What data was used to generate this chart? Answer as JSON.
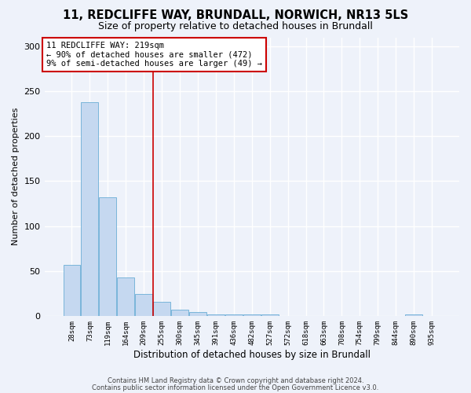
{
  "title1": "11, REDCLIFFE WAY, BRUNDALL, NORWICH, NR13 5LS",
  "title2": "Size of property relative to detached houses in Brundall",
  "bar_labels": [
    "28sqm",
    "73sqm",
    "119sqm",
    "164sqm",
    "209sqm",
    "255sqm",
    "300sqm",
    "345sqm",
    "391sqm",
    "436sqm",
    "482sqm",
    "527sqm",
    "572sqm",
    "618sqm",
    "663sqm",
    "708sqm",
    "754sqm",
    "799sqm",
    "844sqm",
    "890sqm",
    "935sqm"
  ],
  "bar_values": [
    57,
    238,
    132,
    43,
    24,
    16,
    7,
    4,
    2,
    2,
    2,
    2,
    0,
    0,
    0,
    0,
    0,
    0,
    0,
    2,
    0
  ],
  "bar_color": "#c5d8f0",
  "bar_edge_color": "#6baed6",
  "ylim": [
    0,
    310
  ],
  "yticks": [
    0,
    50,
    100,
    150,
    200,
    250,
    300
  ],
  "red_line_x": 4.5,
  "annotation_text": "11 REDCLIFFE WAY: 219sqm\n← 90% of detached houses are smaller (472)\n9% of semi-detached houses are larger (49) →",
  "annotation_box_color": "#ffffff",
  "annotation_box_edge": "#cc0000",
  "annotation_fontsize": 7.5,
  "xlabel": "Distribution of detached houses by size in Brundall",
  "ylabel": "Number of detached properties",
  "footer1": "Contains HM Land Registry data © Crown copyright and database right 2024.",
  "footer2": "Contains public sector information licensed under the Open Government Licence v3.0.",
  "bg_color": "#eef2fa",
  "grid_color": "#ffffff",
  "title1_fontsize": 10.5,
  "title2_fontsize": 9
}
